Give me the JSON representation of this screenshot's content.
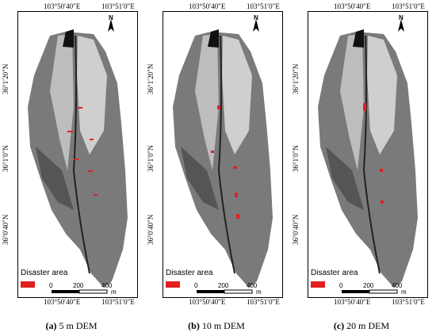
{
  "coords": {
    "lon_left": "103°50′40″E",
    "lon_right": "103°51′0″E",
    "lat_top": "36°1′20″N",
    "lat_mid": "36°1′0″N",
    "lat_bot": "36°0′40″N"
  },
  "north_label": "N",
  "legend_label": "Disaster area",
  "scale": {
    "tick0": "0",
    "tick1": "200",
    "tick2": "400",
    "unit": "m"
  },
  "captions": [
    {
      "letter": "(a)",
      "text": " 5 m DEM"
    },
    {
      "letter": "(b)",
      "text": " 10 m DEM"
    },
    {
      "letter": "(c)",
      "text": " 20 m DEM"
    }
  ],
  "colors": {
    "disaster": "#e02020"
  }
}
